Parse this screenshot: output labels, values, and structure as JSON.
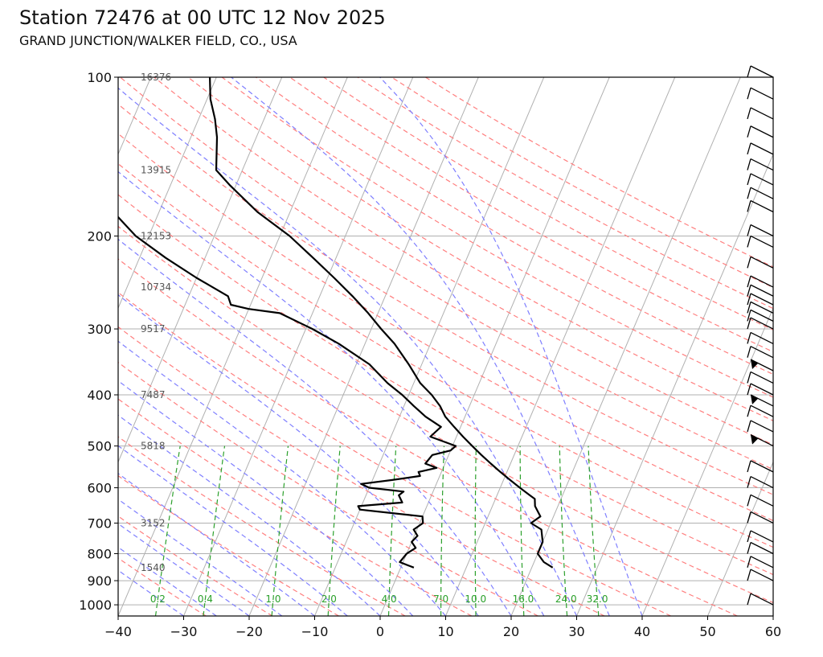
{
  "title": "Station 72476 at 00 UTC 12 Nov 2025",
  "subtitle": "GRAND JUNCTION/WALKER FIELD, CO., USA",
  "chart_data": {
    "type": "line",
    "chart_kind": "skew-T log-P sounding",
    "xlim": [
      -40,
      60
    ],
    "ylim": [
      1050,
      100
    ],
    "y_scale": "log",
    "x_ticks": [
      "−40",
      "−30",
      "−20",
      "−10",
      "0",
      "10",
      "20",
      "30",
      "40",
      "50",
      "60"
    ],
    "y_ticks": [
      "100",
      "200",
      "300",
      "400",
      "500",
      "600",
      "700",
      "800",
      "900",
      "1000"
    ],
    "height_labels": [
      {
        "p": 100,
        "text": "16376"
      },
      {
        "p": 150,
        "text": "13915"
      },
      {
        "p": 200,
        "text": "12153"
      },
      {
        "p": 250,
        "text": "10734"
      },
      {
        "p": 300,
        "text": "9517"
      },
      {
        "p": 400,
        "text": "7487"
      },
      {
        "p": 500,
        "text": "5818"
      },
      {
        "p": 700,
        "text": "3152"
      },
      {
        "p": 850,
        "text": "1540"
      }
    ],
    "mixing_ratio_labels": [
      "0.2",
      "0.4",
      "1.0",
      "2.0",
      "4.0",
      "7.0",
      "10.0",
      "16.0",
      "24.0",
      "32.0"
    ],
    "colors": {
      "dry_adiabat": "#ff7f7f",
      "moist_adiabat": "#7f7fff",
      "mixing_ratio": "#2ca02c",
      "isotherm": "#b0b0b0",
      "profile": "#000000"
    },
    "series": [
      {
        "p": [
          850,
          830,
          800,
          760,
          720,
          700,
          680,
          650,
          630,
          620,
          600,
          580,
          560,
          540,
          520,
          500,
          480,
          460,
          440,
          420,
          400,
          380,
          350,
          320,
          300,
          280,
          260,
          240,
          220,
          200,
          180,
          160,
          150,
          130,
          120,
          110,
          100
        ],
        "values": [
          23.2,
          21.5,
          20.0,
          20.0,
          19.0,
          17.0,
          18.0,
          16.5,
          16.0,
          15.0,
          13.0,
          11.0,
          9.0,
          7.0,
          5.0,
          3.0,
          1.0,
          -1.0,
          -3.0,
          -4.5,
          -6.5,
          -9.0,
          -12.0,
          -15.5,
          -18.5,
          -21.5,
          -25.0,
          -29.0,
          -33.5,
          -38.5,
          -45.0,
          -51.0,
          -54.0,
          -56.0,
          -57.5,
          -59.5,
          -61.0
        ]
      },
      {
        "p": [
          850,
          830,
          800,
          780,
          760,
          740,
          720,
          700,
          680,
          660,
          650,
          640,
          620,
          610,
          600,
          590,
          580,
          570,
          560,
          550,
          540,
          520,
          510,
          500,
          480,
          460,
          440,
          420,
          400,
          380,
          350,
          320,
          300,
          280,
          275,
          270,
          260,
          240,
          220,
          200,
          180,
          160,
          150,
          140,
          130,
          120,
          110,
          100
        ],
        "values": [
          2.0,
          -0.5,
          0.0,
          1.0,
          0.0,
          0.5,
          -0.5,
          0.5,
          0.0,
          -10.0,
          -10.5,
          -4.0,
          -5.0,
          -4.5,
          -10.0,
          -11.5,
          -7.0,
          -3.0,
          -3.5,
          -1.0,
          -3.0,
          -2.5,
          0.0,
          0.5,
          -4.0,
          -3.0,
          -6.0,
          -8.5,
          -11.0,
          -14.0,
          -18.0,
          -24.0,
          -29.0,
          -35.0,
          -40.0,
          -43.0,
          -44.0,
          -50.0,
          -56.0,
          -62.0,
          -67.0,
          -72.0,
          -75.0,
          -77.0,
          -79.0,
          -80.0,
          -82.0,
          -84.0
        ]
      }
    ],
    "wind_barbs_p": [
      1000,
      900,
      850,
      800,
      760,
      700,
      650,
      600,
      560,
      500,
      470,
      440,
      420,
      400,
      380,
      360,
      340,
      320,
      300,
      290,
      280,
      270,
      260,
      250,
      230,
      210,
      200,
      180,
      170,
      160,
      150,
      140,
      130,
      120,
      110,
      100
    ]
  }
}
